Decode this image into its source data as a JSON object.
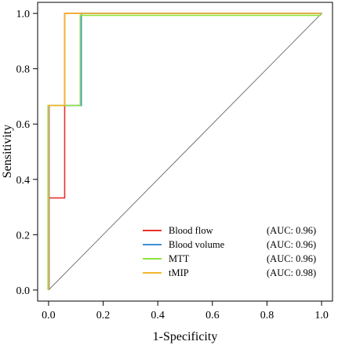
{
  "chart_data": {
    "type": "line",
    "title": "",
    "xlabel": "1-Specificity",
    "ylabel": "Sensitivity",
    "xlim": [
      -0.04,
      1.04
    ],
    "ylim": [
      -0.04,
      1.04
    ],
    "xticks": [
      "0.0",
      "0.2",
      "0.4",
      "0.6",
      "0.8",
      "1.0"
    ],
    "yticks": [
      "0.0",
      "0.2",
      "0.4",
      "0.6",
      "0.8",
      "1.0"
    ],
    "grid": false,
    "legend_position": "bottom-right",
    "reference_line": {
      "x": [
        0,
        1
      ],
      "y": [
        0,
        1
      ],
      "color": "#777777"
    },
    "series": [
      {
        "name": "Blood flow",
        "auc": "(AUC: 0.96)",
        "color": "#e8322b",
        "x": [
          0,
          0.0,
          0.0,
          0.059,
          0.059,
          1.0
        ],
        "y": [
          0,
          0.0,
          0.333,
          0.333,
          1.0,
          1.0
        ]
      },
      {
        "name": "Blood volume",
        "auc": "(AUC: 0.96)",
        "color": "#3d8fd6",
        "x": [
          0,
          0.0,
          0.0,
          0.118,
          0.118,
          1.0
        ],
        "y": [
          0,
          0.0,
          0.667,
          0.667,
          1.0,
          1.0
        ]
      },
      {
        "name": "MTT",
        "auc": "(AUC: 0.96)",
        "color": "#8fe33a",
        "x": [
          0,
          0.0,
          0.0,
          0.118,
          0.118,
          1.0
        ],
        "y": [
          0,
          0.0,
          0.667,
          0.667,
          0.993,
          0.993
        ]
      },
      {
        "name": "tMIP",
        "auc": "(AUC: 0.98)",
        "color": "#f5b52e",
        "x": [
          0,
          0.0,
          0.0,
          0.059,
          0.059,
          1.0
        ],
        "y": [
          0,
          0.0,
          0.667,
          0.667,
          1.0,
          1.0
        ]
      }
    ]
  }
}
